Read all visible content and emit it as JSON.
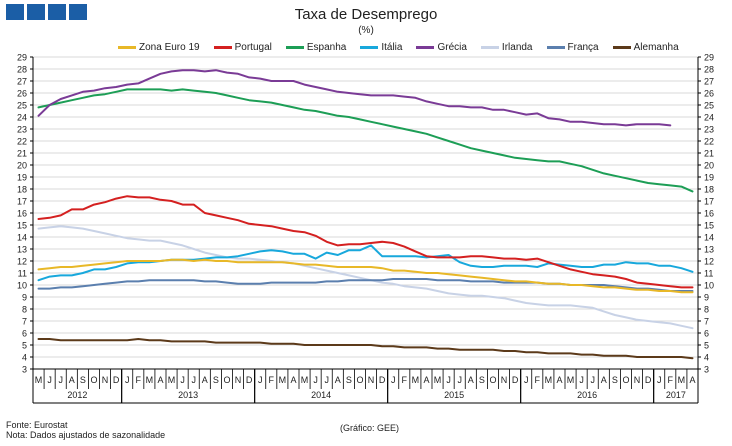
{
  "title": "Taxa de Desemprego",
  "subtitle": "(%)",
  "footer": {
    "source": "Fonte: Eurostat",
    "note": "Nota: Dados ajustados de sazonalidade",
    "credit": "(Gráfico: GEE)"
  },
  "colors": {
    "logo": "#1b5ea6",
    "grid": "#d9d9d9",
    "axis": "#000000"
  },
  "chart_data": {
    "type": "line",
    "title": "Taxa de Desemprego",
    "subtitle": "(%)",
    "ylim": [
      3,
      29
    ],
    "y_ticks": [
      3,
      4,
      5,
      6,
      7,
      8,
      9,
      10,
      11,
      12,
      13,
      14,
      15,
      16,
      17,
      18,
      19,
      20,
      21,
      22,
      23,
      24,
      25,
      26,
      27,
      28,
      29
    ],
    "grid": true,
    "legend_position": "top",
    "month_labels": [
      "M",
      "J",
      "J",
      "A",
      "S",
      "O",
      "N",
      "D",
      "J",
      "F",
      "M",
      "A",
      "M",
      "J",
      "J",
      "A",
      "S",
      "O",
      "N",
      "D",
      "J",
      "F",
      "M",
      "A",
      "M",
      "J",
      "J",
      "A",
      "S",
      "O",
      "N",
      "D",
      "J",
      "F",
      "M",
      "A",
      "M",
      "J",
      "J",
      "A",
      "S",
      "O",
      "N",
      "D",
      "J",
      "F",
      "M",
      "A",
      "M",
      "J",
      "J",
      "A",
      "S",
      "O",
      "N",
      "D",
      "J",
      "F",
      "M",
      "A"
    ],
    "years": [
      {
        "label": "2012",
        "start": 0,
        "end": 8
      },
      {
        "label": "2013",
        "start": 8,
        "end": 20
      },
      {
        "label": "2014",
        "start": 20,
        "end": 32
      },
      {
        "label": "2015",
        "start": 32,
        "end": 44
      },
      {
        "label": "2016",
        "start": 44,
        "end": 56
      },
      {
        "label": "2017",
        "start": 56,
        "end": 60
      }
    ],
    "series": [
      {
        "name": "Zona Euro 19",
        "color": "#e8b828",
        "values": [
          11.3,
          11.4,
          11.5,
          11.5,
          11.6,
          11.7,
          11.8,
          11.9,
          12.0,
          12.0,
          12.0,
          12.0,
          12.1,
          12.1,
          12.0,
          12.1,
          12.0,
          12.0,
          11.9,
          11.9,
          11.9,
          11.9,
          11.9,
          11.8,
          11.7,
          11.7,
          11.6,
          11.5,
          11.5,
          11.5,
          11.5,
          11.4,
          11.2,
          11.2,
          11.1,
          11.0,
          11.0,
          10.9,
          10.8,
          10.7,
          10.6,
          10.5,
          10.4,
          10.3,
          10.3,
          10.2,
          10.1,
          10.1,
          10.0,
          10.0,
          9.9,
          9.8,
          9.8,
          9.7,
          9.6,
          9.6,
          9.5,
          9.5,
          9.4,
          9.4
        ]
      },
      {
        "name": "Portugal",
        "color": "#d42020",
        "values": [
          15.5,
          15.6,
          15.8,
          16.3,
          16.3,
          16.7,
          16.9,
          17.2,
          17.4,
          17.3,
          17.3,
          17.1,
          17.0,
          16.7,
          16.7,
          16.0,
          15.8,
          15.6,
          15.4,
          15.1,
          15.0,
          14.9,
          14.7,
          14.5,
          14.4,
          14.1,
          13.6,
          13.3,
          13.4,
          13.4,
          13.5,
          13.6,
          13.5,
          13.2,
          12.8,
          12.4,
          12.3,
          12.3,
          12.3,
          12.4,
          12.4,
          12.3,
          12.2,
          12.2,
          12.1,
          12.2,
          11.9,
          11.6,
          11.3,
          11.1,
          10.9,
          10.8,
          10.7,
          10.5,
          10.2,
          10.1,
          10.0,
          9.9,
          9.8,
          9.8
        ]
      },
      {
        "name": "Espanha",
        "color": "#1d9e56",
        "values": [
          24.8,
          25.0,
          25.2,
          25.4,
          25.6,
          25.8,
          25.9,
          26.1,
          26.3,
          26.3,
          26.3,
          26.3,
          26.2,
          26.3,
          26.2,
          26.1,
          26.0,
          25.8,
          25.6,
          25.4,
          25.3,
          25.2,
          25.0,
          24.8,
          24.6,
          24.5,
          24.3,
          24.1,
          24.0,
          23.8,
          23.6,
          23.4,
          23.2,
          23.0,
          22.8,
          22.6,
          22.3,
          22.0,
          21.7,
          21.4,
          21.2,
          21.0,
          20.8,
          20.6,
          20.5,
          20.4,
          20.3,
          20.3,
          20.1,
          19.9,
          19.6,
          19.3,
          19.1,
          18.9,
          18.7,
          18.5,
          18.4,
          18.3,
          18.2,
          17.8
        ]
      },
      {
        "name": "Itália",
        "color": "#18a8dc",
        "values": [
          10.4,
          10.7,
          10.8,
          10.8,
          11.0,
          11.3,
          11.3,
          11.5,
          11.8,
          11.9,
          11.9,
          12.0,
          12.1,
          12.1,
          12.1,
          12.2,
          12.3,
          12.3,
          12.4,
          12.6,
          12.8,
          12.9,
          12.8,
          12.6,
          12.6,
          12.2,
          12.7,
          12.5,
          12.9,
          12.9,
          13.3,
          12.4,
          12.4,
          12.4,
          12.4,
          12.3,
          12.4,
          12.5,
          11.9,
          11.6,
          11.5,
          11.5,
          11.6,
          11.6,
          11.6,
          11.5,
          11.8,
          11.7,
          11.6,
          11.5,
          11.5,
          11.7,
          11.7,
          11.9,
          11.8,
          11.8,
          11.6,
          11.6,
          11.4,
          11.1
        ]
      },
      {
        "name": "Grécia",
        "color": "#7a3b96",
        "values": [
          24.1,
          25.0,
          25.5,
          25.8,
          26.1,
          26.2,
          26.4,
          26.5,
          26.7,
          26.8,
          27.2,
          27.6,
          27.8,
          27.9,
          27.9,
          27.8,
          27.9,
          27.7,
          27.6,
          27.3,
          27.2,
          27.0,
          27.0,
          27.0,
          26.7,
          26.5,
          26.3,
          26.1,
          26.0,
          25.9,
          25.8,
          25.8,
          25.8,
          25.7,
          25.6,
          25.3,
          25.1,
          24.9,
          24.9,
          24.8,
          24.8,
          24.6,
          24.6,
          24.4,
          24.2,
          24.3,
          23.9,
          23.8,
          23.6,
          23.6,
          23.5,
          23.4,
          23.4,
          23.3,
          23.4,
          23.4,
          23.4,
          23.3
        ]
      },
      {
        "name": "Irlanda",
        "color": "#c8d2e6",
        "values": [
          14.7,
          14.8,
          14.9,
          14.8,
          14.7,
          14.5,
          14.3,
          14.1,
          13.9,
          13.8,
          13.7,
          13.7,
          13.5,
          13.3,
          13.0,
          12.7,
          12.5,
          12.3,
          12.2,
          12.2,
          12.1,
          12.0,
          11.9,
          11.8,
          11.6,
          11.4,
          11.2,
          11.0,
          10.8,
          10.6,
          10.4,
          10.2,
          10.1,
          9.9,
          9.8,
          9.7,
          9.5,
          9.3,
          9.2,
          9.1,
          9.1,
          9.0,
          8.9,
          8.7,
          8.5,
          8.4,
          8.3,
          8.3,
          8.3,
          8.2,
          8.1,
          7.8,
          7.5,
          7.3,
          7.1,
          7.0,
          6.9,
          6.8,
          6.6,
          6.4
        ]
      },
      {
        "name": "França",
        "color": "#5b7fae",
        "values": [
          9.7,
          9.7,
          9.8,
          9.8,
          9.9,
          10.0,
          10.1,
          10.2,
          10.3,
          10.3,
          10.4,
          10.4,
          10.4,
          10.4,
          10.4,
          10.3,
          10.3,
          10.2,
          10.1,
          10.1,
          10.1,
          10.2,
          10.2,
          10.2,
          10.2,
          10.2,
          10.3,
          10.3,
          10.4,
          10.4,
          10.4,
          10.4,
          10.5,
          10.5,
          10.5,
          10.5,
          10.4,
          10.4,
          10.4,
          10.3,
          10.3,
          10.3,
          10.2,
          10.2,
          10.2,
          10.2,
          10.1,
          10.1,
          10.0,
          10.0,
          10.0,
          10.0,
          9.9,
          9.8,
          9.7,
          9.7,
          9.6,
          9.5,
          9.5,
          9.5
        ]
      },
      {
        "name": "Alemanha",
        "color": "#5c3a1a",
        "values": [
          5.5,
          5.5,
          5.4,
          5.4,
          5.4,
          5.4,
          5.4,
          5.4,
          5.4,
          5.5,
          5.4,
          5.4,
          5.3,
          5.3,
          5.3,
          5.3,
          5.2,
          5.2,
          5.2,
          5.2,
          5.2,
          5.1,
          5.1,
          5.1,
          5.0,
          5.0,
          5.0,
          5.0,
          5.0,
          5.0,
          5.0,
          4.9,
          4.9,
          4.8,
          4.8,
          4.8,
          4.7,
          4.7,
          4.6,
          4.6,
          4.6,
          4.6,
          4.5,
          4.5,
          4.4,
          4.4,
          4.3,
          4.3,
          4.3,
          4.2,
          4.2,
          4.1,
          4.1,
          4.1,
          4.0,
          4.0,
          4.0,
          4.0,
          4.0,
          3.9
        ]
      }
    ]
  }
}
